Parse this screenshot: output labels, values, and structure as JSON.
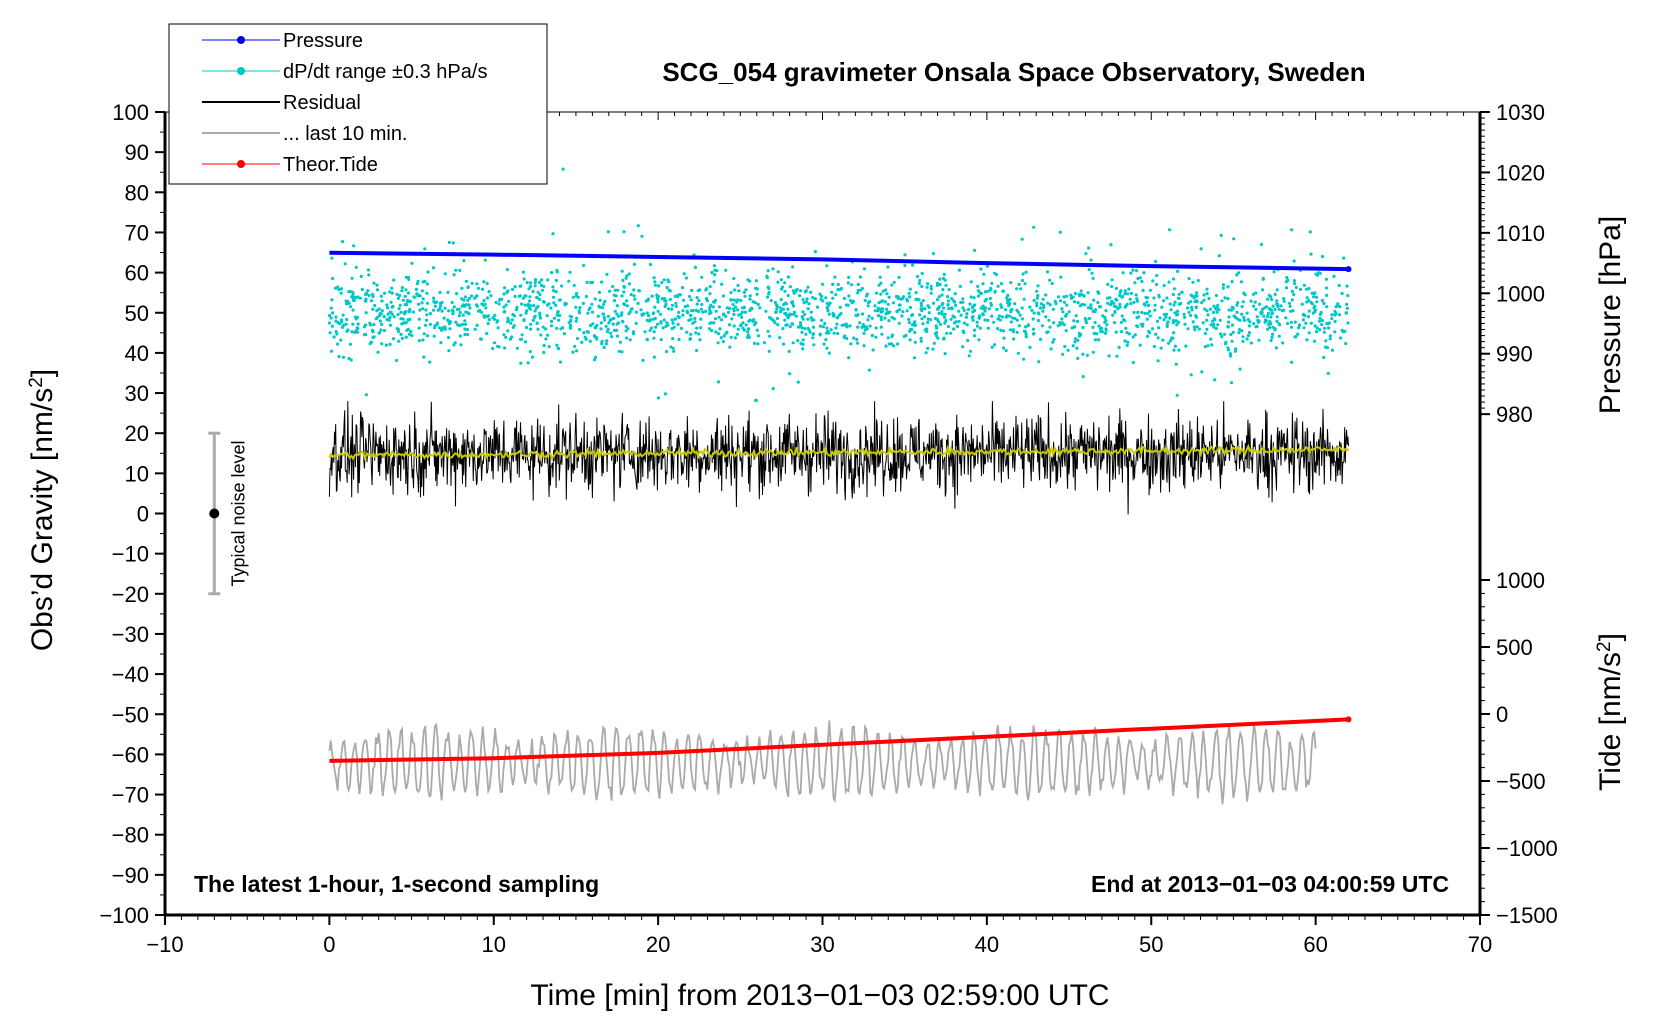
{
  "chart_data": {
    "type": "line",
    "title": "SCG_054 gravimeter Onsala Space Observatory, Sweden",
    "xlabel": "Time [min] from 2013−01−03 02:59:00 UTC",
    "ylabel": "Obs’d Gravity [nm/s",
    "ylabel_sup": "2",
    "ylabel_end": "]",
    "y2label": "Pressure [hPa]",
    "y3label": "Tide [nm/s",
    "y3label_sup": "2",
    "y3label_end": "]",
    "xlim": [
      -10,
      70
    ],
    "ylim": [
      -100,
      100
    ],
    "y2lim": [
      960,
      1030
    ],
    "y3lim": [
      -1500,
      1000
    ],
    "x_ticks": [
      "−10",
      "0",
      "10",
      "20",
      "30",
      "40",
      "50",
      "60",
      "70"
    ],
    "y_ticks": [
      "100",
      "90",
      "80",
      "70",
      "60",
      "50",
      "40",
      "30",
      "20",
      "10",
      "0",
      "−10",
      "−20",
      "−30",
      "−40",
      "−50",
      "−60",
      "−70",
      "−80",
      "−90",
      "−100"
    ],
    "y2_ticks": [
      "1030",
      "1020",
      "1010",
      "1000",
      "990",
      "980"
    ],
    "y3_ticks": [
      "1000",
      "500",
      "0",
      "−500",
      "−1000",
      "−1500"
    ],
    "annotation_left": "The latest 1-hour, 1-second sampling",
    "annotation_right": "End at 2013−01−03 04:00:59 UTC",
    "noise_label": "Typical noise level",
    "noise_bar": {
      "x": -7,
      "center": 0,
      "low": -20,
      "high": 20
    },
    "legend": [
      {
        "label": "Pressure",
        "color": "#0000ff",
        "marker": true
      },
      {
        "label": "dP/dt range ±0.3 hPa/s",
        "color": "#00c8c8",
        "marker": true
      },
      {
        "label": "Residual",
        "color": "#000000",
        "marker": false
      },
      {
        "label": "... last 10 min.",
        "color": "#aaaaaa",
        "marker": false
      },
      {
        "label": "Theor.Tide",
        "color": "#ff0000",
        "marker": true
      }
    ],
    "series": [
      {
        "name": "Pressure",
        "axis": "pressure",
        "color": "#0000ff",
        "x": [
          0,
          10,
          20,
          30,
          40,
          50,
          62
        ],
        "values": [
          1006.7,
          1006.4,
          1006.0,
          1005.6,
          1005.0,
          1004.5,
          1004.0
        ]
      },
      {
        "name": "dP/dt range ±0.3 hPa/s",
        "axis": "gravity",
        "color": "#00c8c8",
        "x_range": [
          0,
          62
        ],
        "center": 50,
        "spread": 8,
        "outlier_range": [
          28,
          88
        ],
        "count": 2200
      },
      {
        "name": "Residual",
        "axis": "gravity",
        "color": "#000000",
        "x_range": [
          0,
          62
        ],
        "center": 15,
        "amplitude": 6,
        "min": -2,
        "max": 28
      },
      {
        "name": "Residual smoothed",
        "axis": "gravity",
        "color": "#c8c800",
        "x": [
          0,
          10,
          20,
          30,
          40,
          50,
          62
        ],
        "values": [
          14.5,
          14.7,
          15.0,
          15.2,
          15.4,
          15.6,
          15.9
        ]
      },
      {
        "name": "... last 10 min.",
        "axis": "gravity",
        "color": "#aaaaaa",
        "x_range": [
          0,
          60
        ],
        "center": -62,
        "amplitude": 6,
        "min": -77,
        "max": -47
      },
      {
        "name": "Theor.Tide",
        "axis": "tide",
        "color": "#ff0000",
        "x": [
          0,
          10,
          20,
          30,
          40,
          50,
          62
        ],
        "values": [
          -350,
          -330,
          -290,
          -230,
          -170,
          -110,
          -40
        ]
      }
    ]
  }
}
